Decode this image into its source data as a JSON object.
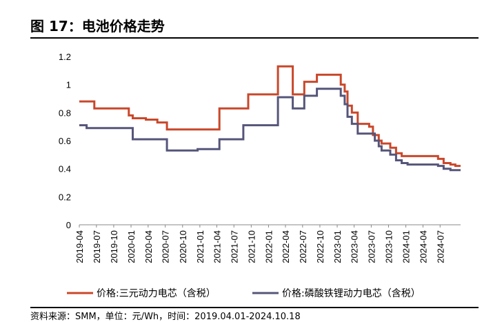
{
  "title": "图 17：电池价格走势",
  "source": "资料来源：SMM，单位：元/Wh，时间：2019.04.01-2024.10.18",
  "chart_data": {
    "type": "line",
    "step": true,
    "title": "",
    "xlabel": "",
    "ylabel": "",
    "ylim": [
      0,
      1.2
    ],
    "yticks": [
      "0",
      "0.2",
      "0.4",
      "0.6",
      "0.8",
      "1",
      "1.2"
    ],
    "xticks": [
      "2019-04",
      "2019-07",
      "2019-10",
      "2020-01",
      "2020-04",
      "2020-07",
      "2020-10",
      "2021-01",
      "2021-04",
      "2021-07",
      "2021-10",
      "2022-01",
      "2022-04",
      "2022-07",
      "2022-10",
      "2023-01",
      "2023-04",
      "2023-07",
      "2023-10",
      "2024-01",
      "2024-04",
      "2024-07"
    ],
    "xrange": [
      "2019-04-01",
      "2024-10-18"
    ],
    "grid": false,
    "legend_position": "bottom",
    "series": [
      {
        "name": "价格:三元动力电芯（含税）",
        "color": "#C9472A",
        "points": [
          [
            "2019-04-01",
            0.88
          ],
          [
            "2019-06-20",
            0.83
          ],
          [
            "2019-12-20",
            0.78
          ],
          [
            "2020-01-10",
            0.76
          ],
          [
            "2020-03-20",
            0.75
          ],
          [
            "2020-05-20",
            0.73
          ],
          [
            "2020-07-10",
            0.68
          ],
          [
            "2021-04-15",
            0.83
          ],
          [
            "2021-09-15",
            0.93
          ],
          [
            "2022-02-20",
            1.13
          ],
          [
            "2022-05-10",
            0.93
          ],
          [
            "2022-07-10",
            1.02
          ],
          [
            "2022-09-15",
            1.07
          ],
          [
            "2023-01-20",
            1.0
          ],
          [
            "2023-02-10",
            0.95
          ],
          [
            "2023-02-25",
            0.85
          ],
          [
            "2023-03-20",
            0.8
          ],
          [
            "2023-04-20",
            0.72
          ],
          [
            "2023-06-20",
            0.7
          ],
          [
            "2023-07-10",
            0.64
          ],
          [
            "2023-08-10",
            0.6
          ],
          [
            "2023-08-25",
            0.58
          ],
          [
            "2023-10-10",
            0.55
          ],
          [
            "2023-11-10",
            0.51
          ],
          [
            "2023-12-10",
            0.49
          ],
          [
            "2024-06-20",
            0.47
          ],
          [
            "2024-07-20",
            0.44
          ],
          [
            "2024-08-25",
            0.43
          ],
          [
            "2024-09-20",
            0.42
          ]
        ]
      },
      {
        "name": "价格:磷酸铁锂动力电芯（含税）",
        "color": "#55557A",
        "points": [
          [
            "2019-04-01",
            0.71
          ],
          [
            "2019-05-10",
            0.69
          ],
          [
            "2020-01-10",
            0.61
          ],
          [
            "2020-07-10",
            0.53
          ],
          [
            "2020-12-20",
            0.54
          ],
          [
            "2021-04-15",
            0.61
          ],
          [
            "2021-08-20",
            0.71
          ],
          [
            "2022-02-20",
            0.91
          ],
          [
            "2022-05-10",
            0.83
          ],
          [
            "2022-07-10",
            0.92
          ],
          [
            "2022-09-15",
            0.97
          ],
          [
            "2023-01-20",
            0.92
          ],
          [
            "2023-02-10",
            0.86
          ],
          [
            "2023-02-25",
            0.77
          ],
          [
            "2023-03-20",
            0.72
          ],
          [
            "2023-04-20",
            0.65
          ],
          [
            "2023-07-20",
            0.6
          ],
          [
            "2023-08-10",
            0.56
          ],
          [
            "2023-08-25",
            0.53
          ],
          [
            "2023-10-10",
            0.5
          ],
          [
            "2023-11-10",
            0.46
          ],
          [
            "2023-12-10",
            0.44
          ],
          [
            "2024-01-10",
            0.43
          ],
          [
            "2024-06-20",
            0.42
          ],
          [
            "2024-07-20",
            0.4
          ],
          [
            "2024-08-25",
            0.39
          ]
        ]
      }
    ]
  }
}
